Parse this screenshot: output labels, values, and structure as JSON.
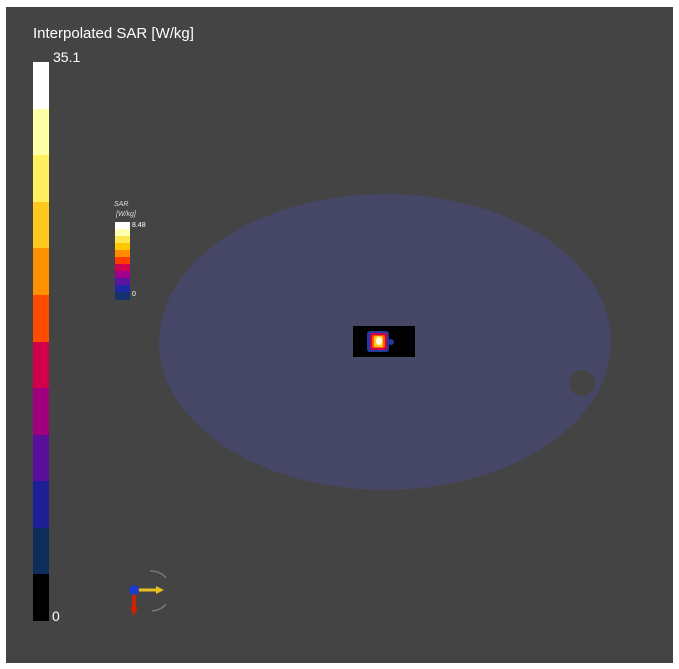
{
  "legend": {
    "title": "Interpolated SAR [W/kg]",
    "max_label": "35.1",
    "min_label": "0",
    "colors": [
      "#ffffff",
      "#ffffa8",
      "#fff060",
      "#ffc81e",
      "#ff9100",
      "#ff4b00",
      "#d2004b",
      "#a0007d",
      "#5a0f9b",
      "#1e1e96",
      "#0f2d5a",
      "#000000"
    ]
  },
  "mini_legend": {
    "title_line1": "SAR",
    "title_line2": "[W/kg]",
    "max_label": "8.48",
    "min_label": "0",
    "colors": [
      "#ffffff",
      "#ffffb0",
      "#ffe650",
      "#ffc800",
      "#ff8c00",
      "#ff3c00",
      "#d20050",
      "#a0008c",
      "#5a14a0",
      "#1e28a0",
      "#14326e"
    ]
  },
  "scene": {
    "phantom_color": "#464766",
    "axes": [
      "x",
      "y",
      "z"
    ]
  }
}
